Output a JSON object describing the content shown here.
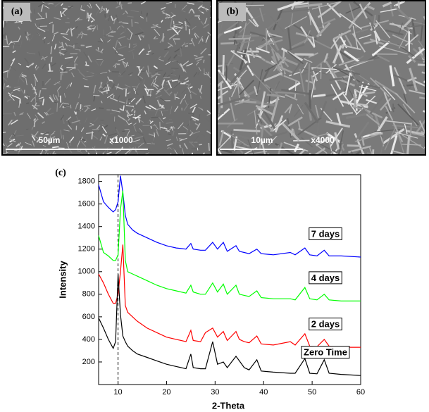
{
  "panels": [
    {
      "label": "(a)",
      "scale": "50µm",
      "magnification": "x1000"
    },
    {
      "label": "(b)",
      "scale": "10µm",
      "magnification": "x4000"
    }
  ],
  "chart_data": {
    "type": "line",
    "panel_label": "(c)",
    "x_label": "2-Theta",
    "y_label": "Intensity",
    "xlim": [
      6,
      60
    ],
    "xticks": [
      10,
      20,
      30,
      40,
      50,
      60
    ],
    "ylim": [
      0,
      1860
    ],
    "yticks": [
      200,
      400,
      600,
      800,
      1000,
      1200,
      1400,
      1600,
      1800
    ],
    "reference_line_x": 10,
    "x": [
      6,
      7,
      8,
      9,
      9.5,
      10,
      10.5,
      11,
      11.5,
      12,
      13,
      14,
      16,
      18,
      20,
      22,
      24,
      25,
      25.5,
      27,
      28,
      29.5,
      30.5,
      31.7,
      32.5,
      34.3,
      35,
      36,
      37,
      38.6,
      39.5,
      42,
      45.5,
      46.5,
      48.5,
      49.5,
      51,
      52.5,
      53.5,
      56,
      60
    ],
    "series": [
      {
        "name": "7 days",
        "color": "#0000ff",
        "values": [
          1770,
          1620,
          1570,
          1530,
          1550,
          1620,
          1850,
          1700,
          1500,
          1420,
          1370,
          1340,
          1300,
          1260,
          1230,
          1210,
          1200,
          1250,
          1200,
          1190,
          1190,
          1260,
          1200,
          1260,
          1180,
          1230,
          1180,
          1170,
          1160,
          1200,
          1160,
          1150,
          1170,
          1150,
          1210,
          1150,
          1140,
          1190,
          1140,
          1140,
          1130
        ]
      },
      {
        "name": "4 days",
        "color": "#00ff00",
        "values": [
          1320,
          1170,
          1140,
          1100,
          1100,
          1150,
          1550,
          1720,
          1100,
          1000,
          980,
          960,
          920,
          880,
          850,
          830,
          810,
          880,
          820,
          800,
          800,
          900,
          820,
          890,
          800,
          880,
          800,
          790,
          780,
          830,
          770,
          760,
          760,
          750,
          860,
          760,
          750,
          800,
          750,
          740,
          740
        ]
      },
      {
        "name": "2 days",
        "color": "#ff0000",
        "values": [
          980,
          900,
          800,
          720,
          720,
          800,
          1000,
          1240,
          700,
          640,
          600,
          560,
          500,
          460,
          420,
          400,
          380,
          480,
          390,
          380,
          460,
          500,
          420,
          470,
          390,
          470,
          400,
          380,
          370,
          430,
          360,
          350,
          380,
          350,
          450,
          340,
          335,
          400,
          340,
          330,
          330
        ]
      },
      {
        "name": "Zero Time",
        "color": "#000000",
        "values": [
          590,
          500,
          400,
          320,
          380,
          980,
          620,
          430,
          380,
          340,
          300,
          270,
          240,
          210,
          180,
          160,
          140,
          270,
          150,
          140,
          140,
          380,
          180,
          200,
          150,
          250,
          210,
          150,
          130,
          220,
          120,
          110,
          100,
          100,
          230,
          100,
          95,
          220,
          100,
          90,
          80
        ]
      }
    ]
  }
}
